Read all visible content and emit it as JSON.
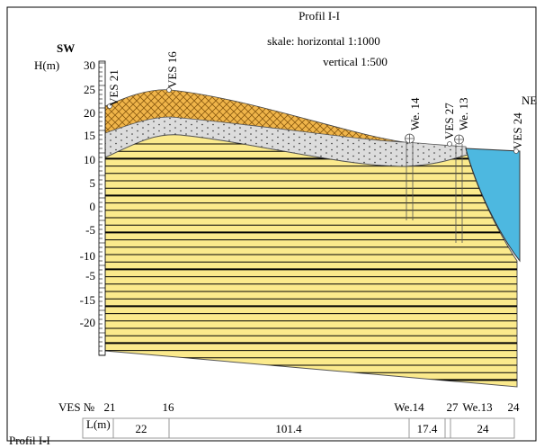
{
  "header": {
    "title": "Profil I-I",
    "scale_horizontal": "skale: horizontal 1:1000",
    "scale_vertical": "vertical 1:500"
  },
  "directions": {
    "left": "SW",
    "right": "NE"
  },
  "axis": {
    "label": "H(m)",
    "ticks": [
      "30",
      "25",
      "20",
      "15",
      "10",
      "5",
      "0",
      "-5",
      "-10",
      "-5",
      "-15",
      "-20"
    ]
  },
  "wells": [
    {
      "label": "VES 21"
    },
    {
      "label": "VES 16"
    },
    {
      "label": "We. 14"
    },
    {
      "label": "VES 27"
    },
    {
      "label": "We. 13"
    },
    {
      "label": "VES 24"
    }
  ],
  "footer": {
    "points_label": "VES №",
    "points": [
      "21",
      "16",
      "We.14",
      "27",
      "We.13",
      "24"
    ],
    "distance_label": "L(m)",
    "distances": [
      "22",
      "101.4",
      "17.4",
      "24"
    ],
    "caption": "Profil I-I"
  }
}
